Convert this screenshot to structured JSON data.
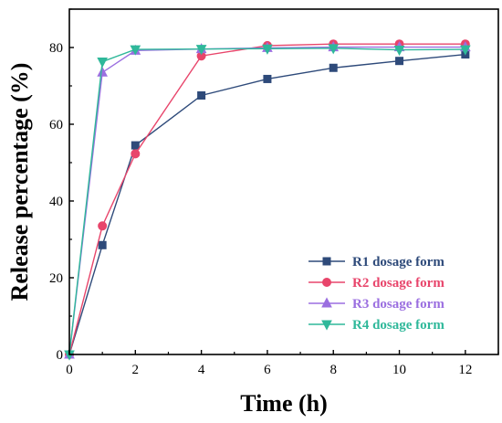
{
  "chart_data": {
    "type": "line",
    "title": "",
    "xlabel": "Time (h)",
    "ylabel": "Release percentage (%)",
    "xlim": [
      0,
      13
    ],
    "ylim": [
      0,
      90
    ],
    "xticks": [
      0,
      2,
      4,
      6,
      8,
      10,
      12
    ],
    "yticks": [
      0,
      20,
      40,
      60,
      80
    ],
    "x": [
      0,
      1,
      2,
      4,
      6,
      8,
      10,
      12
    ],
    "grid": false,
    "legend_position": "bottom-right",
    "series": [
      {
        "name": "R1 dosage form",
        "color": "#2e4a7a",
        "marker": "square",
        "values": [
          0,
          28.5,
          54.5,
          67.5,
          71.8,
          74.7,
          76.5,
          78.2
        ]
      },
      {
        "name": "R2 dosage form",
        "color": "#e8456b",
        "marker": "circle",
        "values": [
          0,
          33.5,
          52.3,
          77.8,
          80.5,
          80.9,
          80.9,
          80.9
        ]
      },
      {
        "name": "R3 dosage form",
        "color": "#9b6fe0",
        "marker": "triangle-up",
        "values": [
          0,
          73.5,
          79.2,
          79.6,
          79.9,
          80.1,
          80.1,
          80.1
        ]
      },
      {
        "name": "R4 dosage form",
        "color": "#2fb89a",
        "marker": "triangle-down",
        "values": [
          0,
          76.3,
          79.5,
          79.6,
          79.7,
          79.8,
          79.4,
          79.5
        ]
      }
    ]
  }
}
